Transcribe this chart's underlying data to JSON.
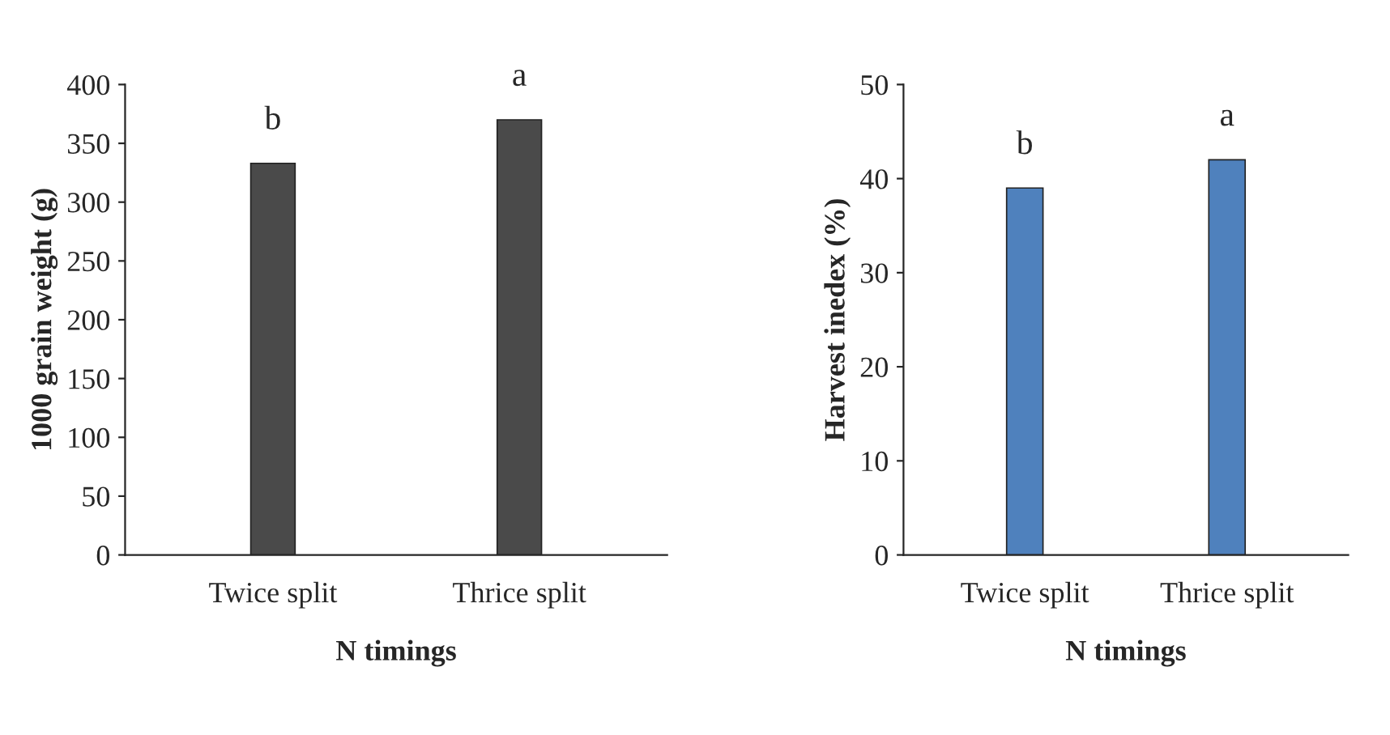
{
  "chart_data": [
    {
      "type": "bar",
      "xlabel": "N timings",
      "ylabel": "1000 grain weight (g)",
      "categories": [
        "Twice split",
        "Thrice split"
      ],
      "values": [
        333,
        370
      ],
      "color": "#4a4a4a",
      "ylim": [
        0,
        400
      ],
      "yticks": [
        0,
        50,
        100,
        150,
        200,
        250,
        300,
        350,
        400
      ],
      "grid": false,
      "legend": false,
      "annotations": [
        {
          "text": "b",
          "x": "Twice split",
          "y": 333
        },
        {
          "text": "a",
          "x": "Thrice split",
          "y": 370
        }
      ]
    },
    {
      "type": "bar",
      "xlabel": "N timings",
      "ylabel": "Harvest inedex (%)",
      "categories": [
        "Twice split",
        "Thrice split"
      ],
      "values": [
        39,
        42
      ],
      "color": "#4f81bd",
      "ylim": [
        0,
        50
      ],
      "yticks": [
        0,
        10,
        20,
        30,
        40,
        50
      ],
      "grid": false,
      "legend": false,
      "annotations": [
        {
          "text": "b",
          "x": "Twice split",
          "y": 39
        },
        {
          "text": "a",
          "x": "Thrice split",
          "y": 42
        }
      ]
    }
  ]
}
